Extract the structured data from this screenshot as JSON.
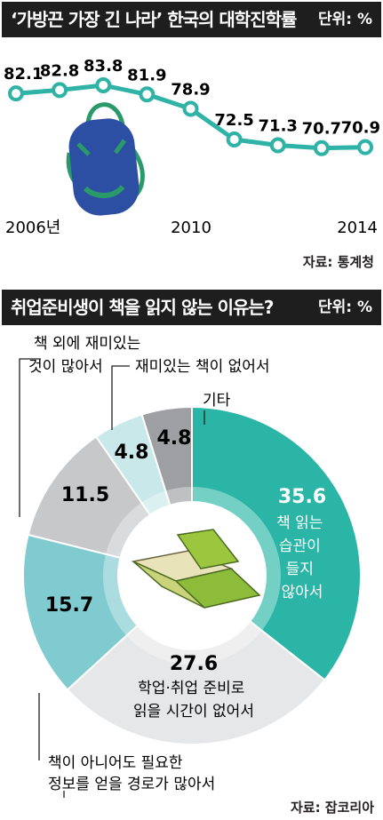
{
  "charts": [
    {
      "type": "line",
      "title": "‘가방끈 가장 긴 나라’ 한국의 대학진학률",
      "unit": "단위: %",
      "x_tick_labels": [
        "2006년",
        "2010",
        "2014"
      ],
      "source": "자료: 통계청",
      "line_color": "#2eb3a6"
    },
    {
      "type": "pie",
      "title": "취업준비생이 책을 읽지 않는 이유는?",
      "unit": "단위: %",
      "source": "자료: 잡코리아",
      "slice_labels": {
        "s0": [
          "책 읽는",
          "습관이",
          "들지",
          "않아서"
        ],
        "s1": [
          "학업·취업 준비로",
          "읽을 시간이 없어서"
        ],
        "s2": [
          "책이 아니어도 필요한",
          "정보를 얻을 경로가 많아서"
        ],
        "s3": [
          "책 외에 재미있는",
          "것이 많아서"
        ],
        "s4": [
          "재미있는 책이 없어서"
        ],
        "s5": [
          "기타"
        ]
      }
    }
  ],
  "chart_data": [
    {
      "type": "line",
      "x": [
        2006,
        2007,
        2008,
        2009,
        2010,
        2011,
        2012,
        2013,
        2014
      ],
      "series": [
        {
          "values": [
            82.1,
            82.8,
            83.8,
            81.9,
            78.9,
            72.5,
            71.3,
            70.7,
            70.9
          ]
        }
      ],
      "value_labels": [
        "82.1",
        "82.8",
        "83.8",
        "81.9",
        "78.9",
        "72.5",
        "71.3",
        "70.7",
        "70.9"
      ],
      "color": "#2eb3a6"
    },
    {
      "type": "pie",
      "values": [
        35.6,
        27.6,
        15.7,
        11.5,
        4.8,
        4.8
      ],
      "value_labels": [
        "35.6",
        "27.6",
        "15.7",
        "11.5",
        "4.8",
        "4.8"
      ],
      "colors": [
        "#2ab5a6",
        "#e6e7e8",
        "#7fcbcf",
        "#c6c8ca",
        "#c8e8e9",
        "#9d9fa2"
      ]
    }
  ]
}
